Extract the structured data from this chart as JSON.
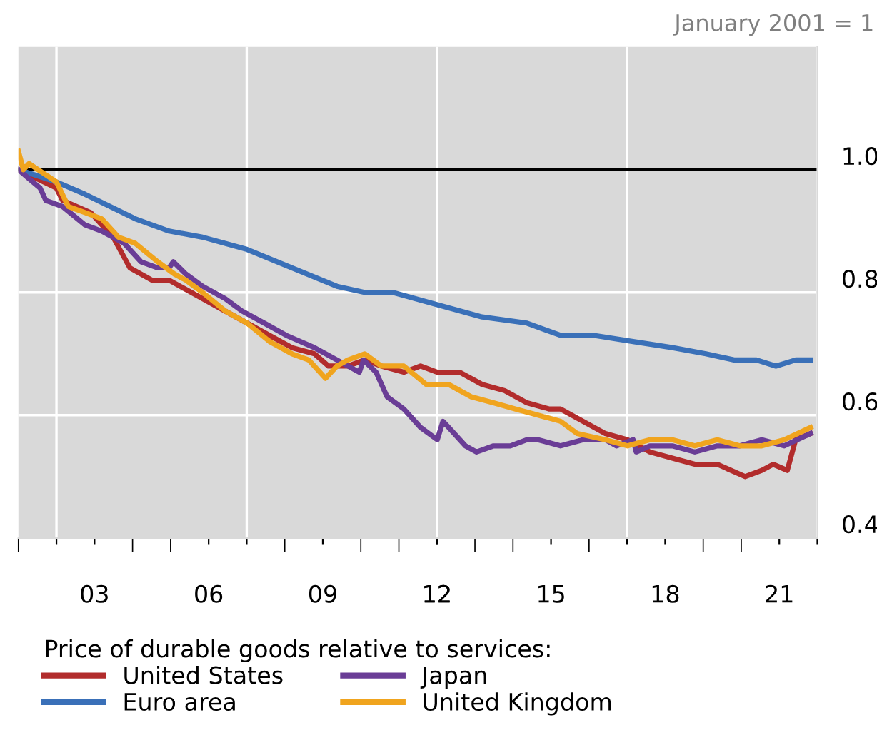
{
  "chart_data": {
    "type": "line",
    "annotations": [
      "January 2001 = 1"
    ],
    "legend_title": "Price of durable goods relative to services:",
    "xlim": [
      2001,
      2022
    ],
    "xticks": [
      {
        "value": 2002,
        "label": null
      },
      {
        "value": 2007,
        "label": null
      },
      {
        "value": 2012,
        "label": null
      },
      {
        "value": 2017,
        "label": null
      },
      {
        "value": 2022,
        "label": null
      },
      {
        "value": 2003,
        "label": "03"
      },
      {
        "value": 2006,
        "label": "06"
      },
      {
        "value": 2009,
        "label": "09"
      },
      {
        "value": 2012,
        "label": "12"
      },
      {
        "value": 2015,
        "label": "15"
      },
      {
        "value": 2018,
        "label": "18"
      },
      {
        "value": 2021,
        "label": "21"
      }
    ],
    "ylim": [
      0.4,
      1.2
    ],
    "yticks": [
      {
        "value": 0.4,
        "label": "0.4"
      },
      {
        "value": 0.6,
        "label": "0.6"
      },
      {
        "value": 0.8,
        "label": "0.8"
      },
      {
        "value": 1.0,
        "label": "1.0"
      }
    ],
    "grid": true,
    "legend": "bottom",
    "ref_lines": [
      {
        "axis": "y",
        "value": 1.0,
        "label": null,
        "color": "#000000"
      }
    ],
    "series": [
      {
        "name": "United States",
        "color": "#b22c2c",
        "x": [
          2001.0,
          2002.0,
          2002.16,
          2002.9,
          2003.49,
          2003.93,
          2004.51,
          2004.96,
          2005.25,
          2006.13,
          2007.01,
          2007.6,
          2008.19,
          2008.78,
          2009.15,
          2009.66,
          2010.1,
          2010.54,
          2011.13,
          2011.57,
          2012.01,
          2012.6,
          2013.19,
          2013.78,
          2014.37,
          2014.96,
          2015.25,
          2015.84,
          2016.43,
          2017.01,
          2017.6,
          2018.19,
          2018.78,
          2019.37,
          2020.1,
          2020.54,
          2020.84,
          2021.21,
          2021.43,
          2021.82
        ],
        "values": [
          1.0,
          0.97,
          0.95,
          0.93,
          0.89,
          0.84,
          0.82,
          0.82,
          0.81,
          0.78,
          0.75,
          0.73,
          0.71,
          0.7,
          0.68,
          0.68,
          0.69,
          0.68,
          0.67,
          0.68,
          0.67,
          0.67,
          0.65,
          0.64,
          0.62,
          0.61,
          0.61,
          0.59,
          0.57,
          0.56,
          0.54,
          0.53,
          0.52,
          0.52,
          0.5,
          0.51,
          0.52,
          0.51,
          0.56,
          0.57
        ]
      },
      {
        "name": "Euro area",
        "color": "#3a70b8",
        "x": [
          2001.0,
          2002.0,
          2002.75,
          2004.07,
          2004.96,
          2005.84,
          2006.43,
          2007.01,
          2008.19,
          2009.37,
          2010.1,
          2010.84,
          2012.01,
          2013.19,
          2014.37,
          2015.25,
          2016.13,
          2017.16,
          2018.19,
          2019.07,
          2019.81,
          2020.4,
          2020.91,
          2021.43,
          2021.82
        ],
        "values": [
          1.0,
          0.98,
          0.96,
          0.92,
          0.9,
          0.89,
          0.88,
          0.87,
          0.84,
          0.81,
          0.8,
          0.8,
          0.78,
          0.76,
          0.75,
          0.73,
          0.73,
          0.72,
          0.71,
          0.7,
          0.69,
          0.69,
          0.68,
          0.69,
          0.69
        ]
      },
      {
        "name": "Japan",
        "color": "#6a3d96",
        "x": [
          2001.0,
          2001.57,
          2001.72,
          2002.16,
          2002.75,
          2003.19,
          2003.78,
          2004.22,
          2004.66,
          2004.96,
          2005.07,
          2005.4,
          2005.84,
          2006.43,
          2006.87,
          2007.46,
          2008.04,
          2008.78,
          2009.37,
          2009.96,
          2010.07,
          2010.4,
          2010.69,
          2011.13,
          2011.57,
          2012.01,
          2012.16,
          2012.31,
          2012.75,
          2013.04,
          2013.49,
          2013.93,
          2014.37,
          2014.66,
          2015.25,
          2015.84,
          2016.43,
          2016.72,
          2017.16,
          2017.24,
          2017.6,
          2018.19,
          2018.78,
          2019.37,
          2019.96,
          2020.54,
          2021.13,
          2021.82
        ],
        "values": [
          1.0,
          0.97,
          0.95,
          0.94,
          0.91,
          0.9,
          0.88,
          0.85,
          0.84,
          0.84,
          0.85,
          0.83,
          0.81,
          0.79,
          0.77,
          0.75,
          0.73,
          0.71,
          0.69,
          0.67,
          0.69,
          0.67,
          0.63,
          0.61,
          0.58,
          0.56,
          0.59,
          0.58,
          0.55,
          0.54,
          0.55,
          0.55,
          0.56,
          0.56,
          0.55,
          0.56,
          0.56,
          0.55,
          0.56,
          0.54,
          0.55,
          0.55,
          0.54,
          0.55,
          0.55,
          0.56,
          0.55,
          0.57
        ]
      },
      {
        "name": "United Kingdom",
        "color": "#f0a41e",
        "x": [
          2001.0,
          2001.13,
          2001.28,
          2002.0,
          2002.31,
          2002.75,
          2003.19,
          2003.63,
          2004.07,
          2004.66,
          2005.1,
          2005.4,
          2005.84,
          2006.43,
          2007.01,
          2007.6,
          2008.19,
          2008.63,
          2009.07,
          2009.37,
          2009.66,
          2010.1,
          2010.54,
          2011.13,
          2011.72,
          2012.31,
          2012.9,
          2013.49,
          2014.07,
          2014.66,
          2015.25,
          2015.69,
          2016.43,
          2017.01,
          2017.6,
          2018.19,
          2018.78,
          2019.37,
          2019.96,
          2020.54,
          2021.13,
          2021.82
        ],
        "values": [
          1.03,
          1.0,
          1.01,
          0.98,
          0.94,
          0.93,
          0.92,
          0.89,
          0.88,
          0.85,
          0.83,
          0.82,
          0.8,
          0.77,
          0.75,
          0.72,
          0.7,
          0.69,
          0.66,
          0.68,
          0.69,
          0.7,
          0.68,
          0.68,
          0.65,
          0.65,
          0.63,
          0.62,
          0.61,
          0.6,
          0.59,
          0.57,
          0.56,
          0.55,
          0.56,
          0.56,
          0.55,
          0.56,
          0.55,
          0.55,
          0.56,
          0.58
        ]
      }
    ]
  }
}
